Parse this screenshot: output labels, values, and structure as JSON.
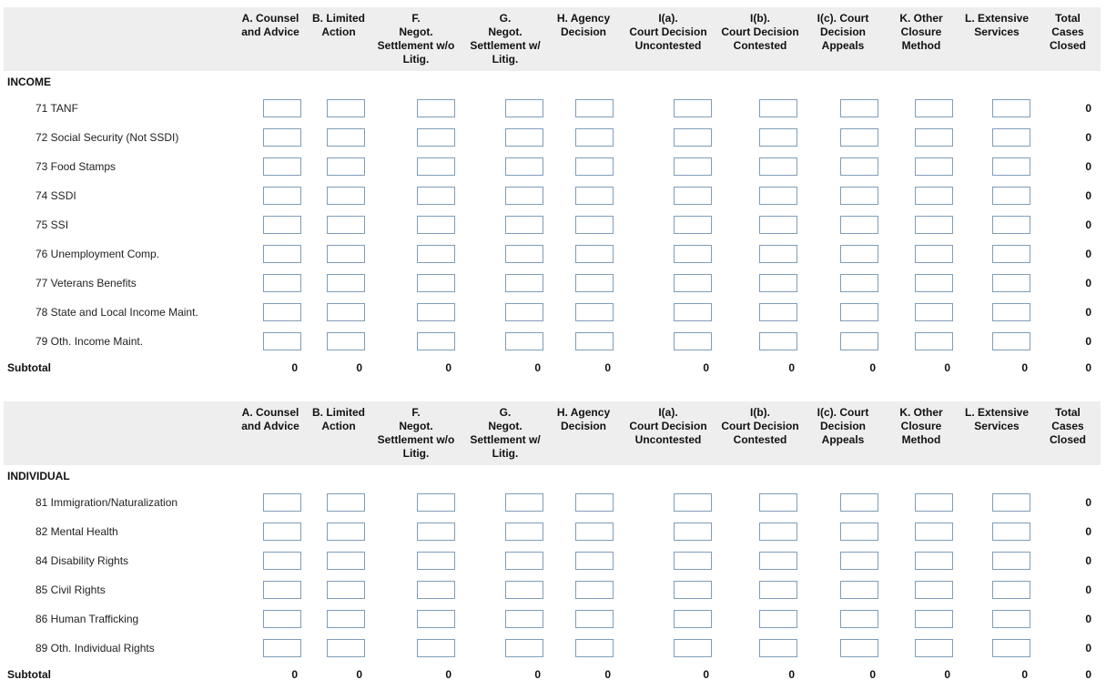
{
  "columns": [
    {
      "lines": [
        "A. Counsel",
        "and Advice"
      ]
    },
    {
      "lines": [
        "B. Limited",
        "Action"
      ]
    },
    {
      "lines": [
        "F.",
        "Negot.",
        "Settlement w/o",
        "Litig."
      ]
    },
    {
      "lines": [
        "G.",
        "Negot.",
        "Settlement w/",
        "Litig."
      ]
    },
    {
      "lines": [
        "H. Agency",
        "Decision"
      ]
    },
    {
      "lines": [
        "I(a).",
        "Court Decision",
        "Uncontested"
      ]
    },
    {
      "lines": [
        "I(b).",
        "Court Decision",
        "Contested"
      ]
    },
    {
      "lines": [
        "I(c). Court",
        "Decision",
        "Appeals"
      ]
    },
    {
      "lines": [
        "K. Other",
        "Closure",
        "Method"
      ]
    },
    {
      "lines": [
        "L. Extensive",
        "Services"
      ]
    },
    {
      "lines": [
        "Total",
        "Cases",
        "Closed"
      ]
    }
  ],
  "sections": [
    {
      "label": "INCOME",
      "rows": [
        {
          "label": "71 TANF",
          "values": [
            "",
            "",
            "",
            "",
            "",
            "",
            "",
            "",
            "",
            ""
          ],
          "total": "0"
        },
        {
          "label": "72 Social Security (Not SSDI)",
          "values": [
            "",
            "",
            "",
            "",
            "",
            "",
            "",
            "",
            "",
            ""
          ],
          "total": "0"
        },
        {
          "label": "73 Food Stamps",
          "values": [
            "",
            "",
            "",
            "",
            "",
            "",
            "",
            "",
            "",
            ""
          ],
          "total": "0"
        },
        {
          "label": "74 SSDI",
          "values": [
            "",
            "",
            "",
            "",
            "",
            "",
            "",
            "",
            "",
            ""
          ],
          "total": "0"
        },
        {
          "label": "75 SSI",
          "values": [
            "",
            "",
            "",
            "",
            "",
            "",
            "",
            "",
            "",
            ""
          ],
          "total": "0"
        },
        {
          "label": "76 Unemployment Comp.",
          "values": [
            "",
            "",
            "",
            "",
            "",
            "",
            "",
            "",
            "",
            ""
          ],
          "total": "0"
        },
        {
          "label": "77 Veterans Benefits",
          "values": [
            "",
            "",
            "",
            "",
            "",
            "",
            "",
            "",
            "",
            ""
          ],
          "total": "0"
        },
        {
          "label": "78 State and Local Income Maint.",
          "values": [
            "",
            "",
            "",
            "",
            "",
            "",
            "",
            "",
            "",
            ""
          ],
          "total": "0"
        },
        {
          "label": "79 Oth. Income Maint.",
          "values": [
            "",
            "",
            "",
            "",
            "",
            "",
            "",
            "",
            "",
            ""
          ],
          "total": "0"
        }
      ],
      "subtotal": {
        "label": "Subtotal",
        "values": [
          "0",
          "0",
          "0",
          "0",
          "0",
          "0",
          "0",
          "0",
          "0",
          "0",
          "0"
        ]
      }
    },
    {
      "label": "INDIVIDUAL",
      "rows": [
        {
          "label": "81 Immigration/Naturalization",
          "values": [
            "",
            "",
            "",
            "",
            "",
            "",
            "",
            "",
            "",
            ""
          ],
          "total": "0"
        },
        {
          "label": "82 Mental Health",
          "values": [
            "",
            "",
            "",
            "",
            "",
            "",
            "",
            "",
            "",
            ""
          ],
          "total": "0"
        },
        {
          "label": "84 Disability Rights",
          "values": [
            "",
            "",
            "",
            "",
            "",
            "",
            "",
            "",
            "",
            ""
          ],
          "total": "0"
        },
        {
          "label": "85 Civil Rights",
          "values": [
            "",
            "",
            "",
            "",
            "",
            "",
            "",
            "",
            "",
            ""
          ],
          "total": "0"
        },
        {
          "label": "86 Human Trafficking",
          "values": [
            "",
            "",
            "",
            "",
            "",
            "",
            "",
            "",
            "",
            ""
          ],
          "total": "0"
        },
        {
          "label": "89 Oth. Individual Rights",
          "values": [
            "",
            "",
            "",
            "",
            "",
            "",
            "",
            "",
            "",
            ""
          ],
          "total": "0"
        }
      ],
      "subtotal": {
        "label": "Subtotal",
        "values": [
          "0",
          "0",
          "0",
          "0",
          "0",
          "0",
          "0",
          "0",
          "0",
          "0",
          "0"
        ]
      }
    }
  ]
}
